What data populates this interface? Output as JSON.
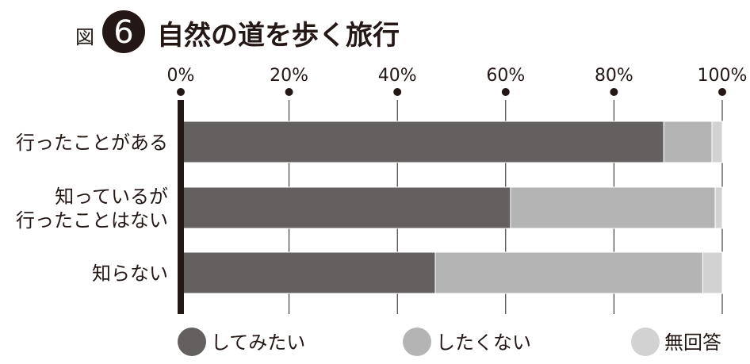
{
  "figure": {
    "prefix": "図",
    "number": "6",
    "title": "自然の道を歩く旅行"
  },
  "chart_data": {
    "type": "bar",
    "orientation": "horizontal",
    "stacked": true,
    "title": "自然の道を歩く旅行",
    "xlim": [
      0,
      100
    ],
    "x_ticks": [
      "0%",
      "20%",
      "40%",
      "60%",
      "80%",
      "100%"
    ],
    "x_tick_values": [
      0,
      20,
      40,
      60,
      80,
      100
    ],
    "grid": true,
    "legend_position": "bottom",
    "categories": [
      [
        "行ったことがある"
      ],
      [
        "知っているが",
        "行ったことはない"
      ],
      [
        "知らない"
      ]
    ],
    "series": [
      {
        "name": "してみたい",
        "color": "#646060",
        "values": [
          89.2,
          60.9,
          47.0
        ]
      },
      {
        "name": "したくない",
        "color": "#b4b4b4",
        "values": [
          8.9,
          37.8,
          49.4
        ]
      },
      {
        "name": "無回答",
        "color": "#d2d2d2",
        "values": [
          1.9,
          1.3,
          3.6
        ]
      }
    ]
  }
}
